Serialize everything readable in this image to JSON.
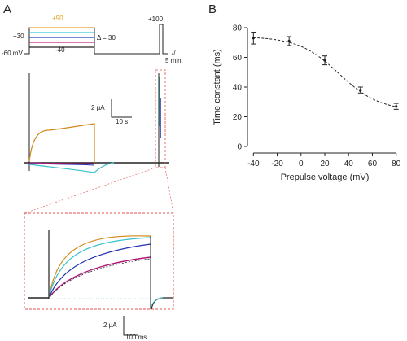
{
  "panel_a": {
    "label": "A",
    "protocol": {
      "levels": [
        "+90",
        "+30",
        "-60 mV",
        "-40",
        "Δ = 30",
        "+100",
        "5 min."
      ],
      "step_colors": [
        "#e0a020",
        "#40c8d8",
        "#2040c0",
        "#c02080",
        "#222222"
      ]
    },
    "current_scale": {
      "y_label": "2 μA",
      "x_label": "10 s"
    },
    "inset_scale": {
      "y_label": "2 μA",
      "x_label": "100 ms"
    },
    "trace_colors": {
      "plus90": "#d08a18",
      "plus60": "#38c0cc",
      "plus30": "#2030b0",
      "zero": "#b01878",
      "minus30": "#222222"
    },
    "inset_frame_color": "#e05050"
  },
  "panel_b": {
    "label": "B",
    "chart_data": {
      "type": "scatter",
      "x": [
        -40,
        -10,
        20,
        50,
        80
      ],
      "y": [
        73,
        71,
        58,
        38,
        27
      ],
      "yerr": [
        4,
        3,
        3,
        2,
        2
      ],
      "fit": "sigmoid-dashed",
      "xlabel": "Prepulse voltage (mV)",
      "ylabel": "Time constant (ms)",
      "xlim": [
        -45,
        85
      ],
      "ylim": [
        0,
        80
      ],
      "xticks": [
        -40,
        -20,
        0,
        20,
        40,
        60,
        80
      ],
      "yticks": [
        0,
        20,
        40,
        60,
        80
      ],
      "grid": false
    }
  }
}
